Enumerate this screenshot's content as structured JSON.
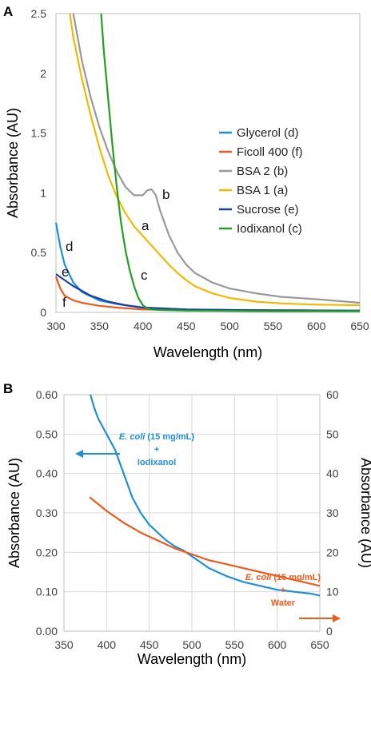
{
  "chart_data": [
    {
      "panel": "A",
      "type": "line",
      "xlabel": "Wavelength (nm)",
      "ylabel": "Absorbance (AU)",
      "xlim": [
        300,
        650
      ],
      "ylim": [
        0,
        2.5
      ],
      "xticks": [
        "300",
        "350",
        "400",
        "450",
        "500",
        "550",
        "600",
        "650"
      ],
      "yticks": [
        "0",
        "0.5",
        "1",
        "1.5",
        "2",
        "2.5"
      ],
      "grid": false,
      "legend_position": "right",
      "series": [
        {
          "name": "Glycerol (d)",
          "label": "d",
          "color": "#1f8fd6",
          "x": [
            300,
            305,
            310,
            320,
            330,
            350,
            370,
            400,
            450,
            500,
            550,
            600,
            650
          ],
          "y": [
            0.75,
            0.55,
            0.4,
            0.25,
            0.17,
            0.1,
            0.07,
            0.04,
            0.025,
            0.02,
            0.018,
            0.016,
            0.015
          ]
        },
        {
          "name": "Ficoll 400 (f)",
          "label": "f",
          "color": "#f05a1a",
          "x": [
            300,
            305,
            310,
            320,
            330,
            350,
            370,
            400,
            450,
            500,
            550,
            600,
            650
          ],
          "y": [
            0.3,
            0.2,
            0.14,
            0.1,
            0.08,
            0.055,
            0.04,
            0.025,
            0.018,
            0.015,
            0.013,
            0.012,
            0.012
          ]
        },
        {
          "name": "BSA 2 (b)",
          "label": "b",
          "color": "#999999",
          "x": [
            320,
            330,
            340,
            350,
            360,
            370,
            380,
            390,
            400,
            405,
            410,
            415,
            420,
            430,
            440,
            450,
            460,
            480,
            500,
            530,
            560,
            600,
            650
          ],
          "y": [
            2.5,
            2.1,
            1.8,
            1.55,
            1.35,
            1.18,
            1.05,
            0.98,
            0.98,
            1.02,
            1.03,
            0.98,
            0.85,
            0.65,
            0.5,
            0.4,
            0.33,
            0.25,
            0.2,
            0.16,
            0.13,
            0.11,
            0.08
          ]
        },
        {
          "name": "BSA 1 (a)",
          "label": "a",
          "color": "#f5b800",
          "x": [
            316,
            320,
            330,
            340,
            350,
            360,
            370,
            380,
            390,
            400,
            410,
            420,
            430,
            440,
            450,
            460,
            480,
            500,
            530,
            560,
            600,
            650
          ],
          "y": [
            2.5,
            2.3,
            1.95,
            1.65,
            1.38,
            1.15,
            0.97,
            0.83,
            0.72,
            0.64,
            0.56,
            0.48,
            0.4,
            0.33,
            0.27,
            0.22,
            0.16,
            0.12,
            0.09,
            0.075,
            0.065,
            0.06
          ]
        },
        {
          "name": "Sucrose (e)",
          "label": "e",
          "color": "#1a3fa8",
          "x": [
            300,
            320,
            340,
            360,
            380,
            400,
            450,
            500,
            550,
            600,
            650
          ],
          "y": [
            0.32,
            0.22,
            0.14,
            0.09,
            0.06,
            0.04,
            0.025,
            0.02,
            0.018,
            0.016,
            0.015
          ]
        },
        {
          "name": "Iodixanol (c)",
          "label": "c",
          "color": "#22a022",
          "x": [
            352,
            355,
            360,
            365,
            370,
            375,
            380,
            385,
            390,
            395,
            400,
            405,
            410,
            420,
            450,
            500,
            550,
            600,
            650
          ],
          "y": [
            2.5,
            2.2,
            1.8,
            1.4,
            1.05,
            0.75,
            0.52,
            0.35,
            0.22,
            0.12,
            0.06,
            0.035,
            0.025,
            0.02,
            0.015,
            0.012,
            0.01,
            0.01,
            0.01
          ]
        }
      ]
    },
    {
      "panel": "B",
      "type": "line",
      "xlabel": "Wavelength (nm)",
      "ylabel": "Absorbance (AU)",
      "y2label": "Absorbance (AU)",
      "xlim": [
        350,
        650
      ],
      "ylim": [
        0,
        0.6
      ],
      "y2lim": [
        0,
        60
      ],
      "xticks": [
        "350",
        "400",
        "450",
        "500",
        "550",
        "600",
        "650"
      ],
      "yticks": [
        "0.00",
        "0.10",
        "0.20",
        "0.30",
        "0.40",
        "0.50",
        "0.60"
      ],
      "y2ticks": [
        "0",
        "10",
        "20",
        "30",
        "40",
        "50",
        "60"
      ],
      "grid": true,
      "series": [
        {
          "name": "E. coli (15 mg/mL) + Iodixanol",
          "axis": "left",
          "color": "#1f8fd6",
          "x": [
            381,
            385,
            390,
            395,
            400,
            405,
            410,
            415,
            420,
            425,
            430,
            440,
            450,
            460,
            470,
            480,
            490,
            500,
            510,
            520,
            540,
            560,
            580,
            600,
            620,
            640,
            650
          ],
          "y": [
            0.6,
            0.57,
            0.54,
            0.52,
            0.5,
            0.48,
            0.46,
            0.43,
            0.4,
            0.37,
            0.34,
            0.3,
            0.27,
            0.25,
            0.23,
            0.215,
            0.205,
            0.19,
            0.175,
            0.16,
            0.14,
            0.125,
            0.115,
            0.105,
            0.1,
            0.095,
            0.09
          ]
        },
        {
          "name": "E. coli (15 mg/mL) + Water",
          "axis": "right",
          "color": "#f05a1a",
          "x": [
            380,
            400,
            420,
            440,
            460,
            480,
            500,
            520,
            540,
            560,
            580,
            600,
            620,
            640,
            650
          ],
          "y": [
            34,
            30.5,
            27.5,
            25,
            23,
            21,
            19.5,
            18,
            17,
            16,
            15,
            14,
            13,
            12,
            11.5
          ]
        }
      ]
    }
  ],
  "panelA": {
    "panel_letter": "A",
    "xlabel": "Wavelength (nm)",
    "ylabel": "Absorbance (AU)",
    "legend": [
      "Glycerol (d)",
      "Ficoll 400 (f)",
      "BSA 2 (b)",
      "BSA 1 (a)",
      "Sucrose (e)",
      "Iodixanol (c)"
    ],
    "curve_labels": [
      "b",
      "a",
      "c",
      "d",
      "e",
      "f"
    ]
  },
  "panelB": {
    "panel_letter": "B",
    "xlabel": "Wavelength (nm)",
    "ylabel": "Absorbance (AU)",
    "y2label": "Absorbance (AU)",
    "ann_left": {
      "italic": "E. coli",
      "rest": " (15 mg/mL)",
      "plus": "+",
      "agent": "Iodixanol"
    },
    "ann_right": {
      "italic": "E. coli",
      "rest": " (15 mg/mL)",
      "plus": "+",
      "agent": "Water"
    }
  },
  "colors": {
    "blue": "#1f8fd6",
    "orange": "#f05a1a",
    "gray": "#999999",
    "yellow": "#f5b800",
    "navy": "#1a3fa8",
    "green": "#22a022"
  }
}
